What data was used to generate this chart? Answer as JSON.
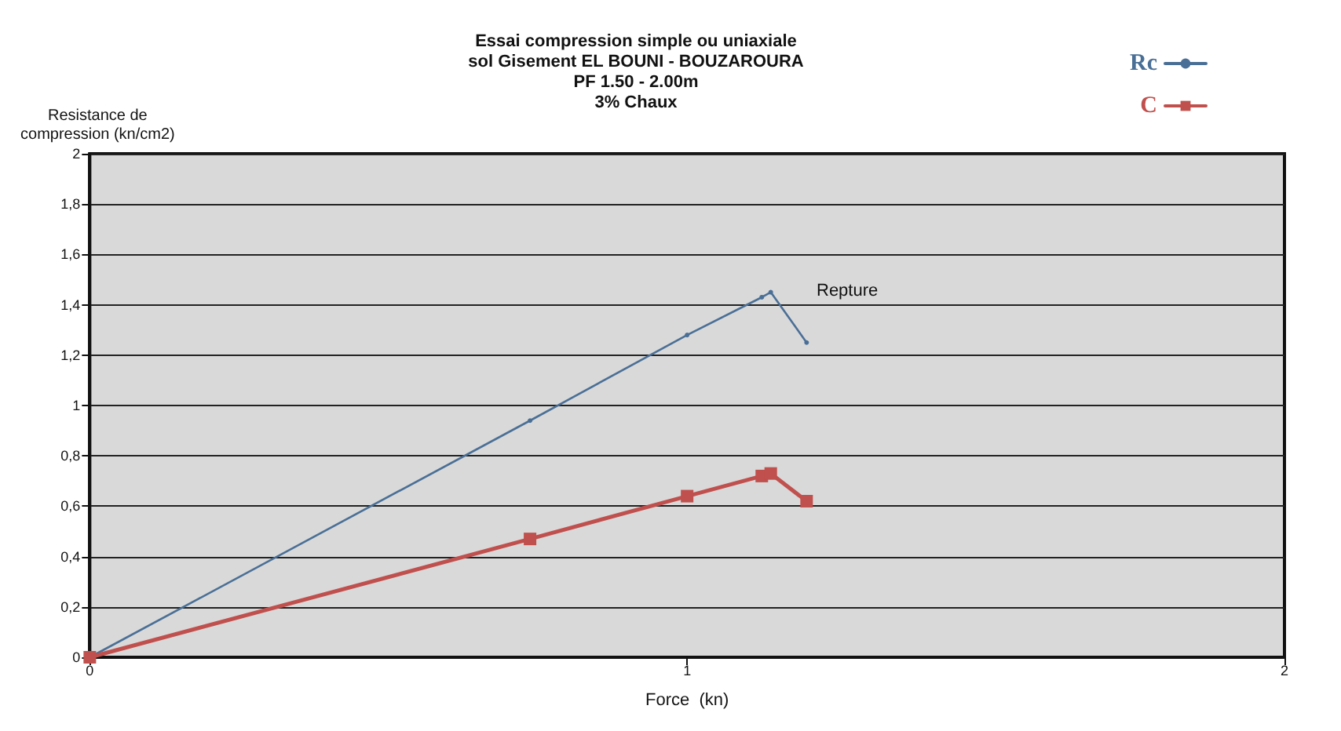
{
  "chart_data": {
    "type": "line",
    "title": "Essai compression simple ou uniaxiale\nsol Gisement EL BOUNI - BOUZAROURA\nPF 1.50 - 2.00m\n3% Chaux",
    "xlabel": "Force  (kn)",
    "ylabel": "Resistance de\ncompression (kn/cm2)",
    "series": [
      {
        "name": "Rc",
        "color": "#4a6f96",
        "marker": "circle",
        "x": [
          0,
          0.737,
          1.0,
          1.125,
          1.14,
          1.2
        ],
        "values": [
          0,
          0.94,
          1.28,
          1.43,
          1.45,
          1.25
        ]
      },
      {
        "name": "C",
        "color": "#c0504d",
        "marker": "square",
        "x": [
          0,
          0.737,
          1.0,
          1.125,
          1.14,
          1.2
        ],
        "values": [
          0,
          0.47,
          0.64,
          0.72,
          0.73,
          0.62
        ]
      }
    ],
    "xlim": [
      0,
      2
    ],
    "xticks": [
      0,
      1,
      2
    ],
    "ylim": [
      0,
      2
    ],
    "yticks": [
      0,
      {
        "value": 0.2,
        "label": "0,2"
      },
      {
        "value": 0.4,
        "label": "0,4"
      },
      {
        "value": 0.6,
        "label": "0,6"
      },
      {
        "value": 0.8,
        "label": "0,8"
      },
      1,
      {
        "value": 1.2,
        "label": "1,2"
      },
      {
        "value": 1.4,
        "label": "1,4"
      },
      {
        "value": 1.6,
        "label": "1,6"
      },
      {
        "value": 1.8,
        "label": "1,8"
      },
      2
    ],
    "grid": "y",
    "legend": "top right",
    "line_style": "solid",
    "annotations": [
      "Repture"
    ]
  }
}
